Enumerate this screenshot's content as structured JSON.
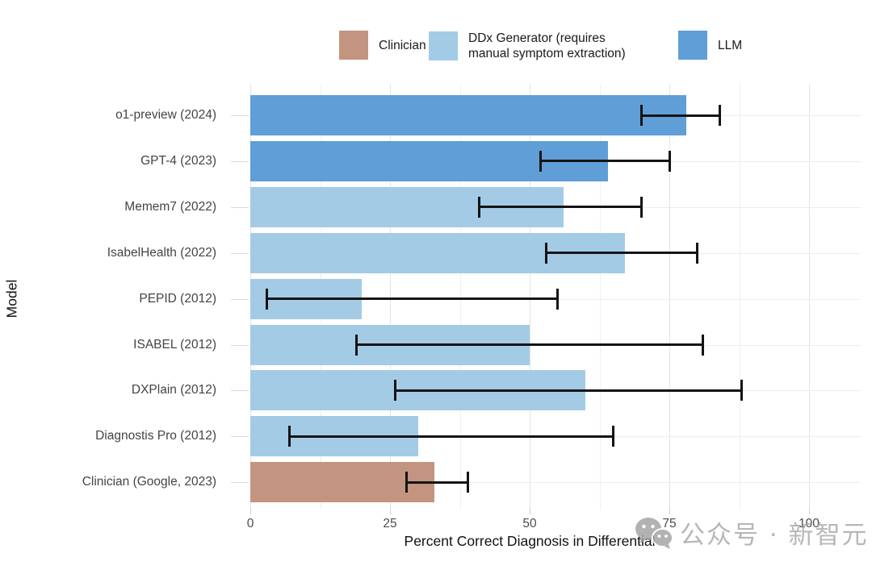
{
  "legend": {
    "items": [
      {
        "key": "Clinician",
        "label": "Clinician",
        "color": "#C3947F"
      },
      {
        "key": "DDx Generator",
        "label": "DDx Generator (requires\nmanual symptom extraction)",
        "color": "#A3CBE5"
      },
      {
        "key": "LLM",
        "label": "LLM",
        "color": "#5F9ED7"
      }
    ]
  },
  "chart_data": {
    "type": "bar",
    "orientation": "horizontal",
    "title": "",
    "xlabel": "Percent Correct Diagnosis in Differential",
    "ylabel": "Model",
    "xlim": [
      0,
      100
    ],
    "xticks": [
      0,
      25,
      50,
      75,
      100
    ],
    "minor_gridlines": [
      12.5,
      37.5,
      62.5,
      87.5
    ],
    "grid": "vertical-and-category",
    "legend_position": "top",
    "error_bars": "95% CI",
    "categories": [
      "o1-preview (2024)",
      "GPT-4 (2023)",
      "Memem7 (2022)",
      "IsabelHealth (2022)",
      "PEPID (2012)",
      "ISABEL (2012)",
      "DXPlain (2012)",
      "Diagnostis Pro (2012)",
      "Clinician (Google, 2023)"
    ],
    "series": [
      {
        "name": "o1-preview (2024)",
        "group": "LLM",
        "value": 78,
        "ci_low": 70,
        "ci_high": 84
      },
      {
        "name": "GPT-4 (2023)",
        "group": "LLM",
        "value": 64,
        "ci_low": 52,
        "ci_high": 75
      },
      {
        "name": "Memem7 (2022)",
        "group": "DDx Generator",
        "value": 56,
        "ci_low": 41,
        "ci_high": 70
      },
      {
        "name": "IsabelHealth (2022)",
        "group": "DDx Generator",
        "value": 67,
        "ci_low": 53,
        "ci_high": 80
      },
      {
        "name": "PEPID (2012)",
        "group": "DDx Generator",
        "value": 20,
        "ci_low": 3,
        "ci_high": 55
      },
      {
        "name": "ISABEL (2012)",
        "group": "DDx Generator",
        "value": 50,
        "ci_low": 19,
        "ci_high": 81
      },
      {
        "name": "DXPlain (2012)",
        "group": "DDx Generator",
        "value": 60,
        "ci_low": 26,
        "ci_high": 88
      },
      {
        "name": "Diagnostis Pro (2012)",
        "group": "DDx Generator",
        "value": 30,
        "ci_low": 7,
        "ci_high": 65
      },
      {
        "name": "Clinician (Google, 2023)",
        "group": "Clinician",
        "value": 33,
        "ci_low": 28,
        "ci_high": 39
      }
    ]
  },
  "watermark": {
    "text": "公众号 · 新智元"
  }
}
